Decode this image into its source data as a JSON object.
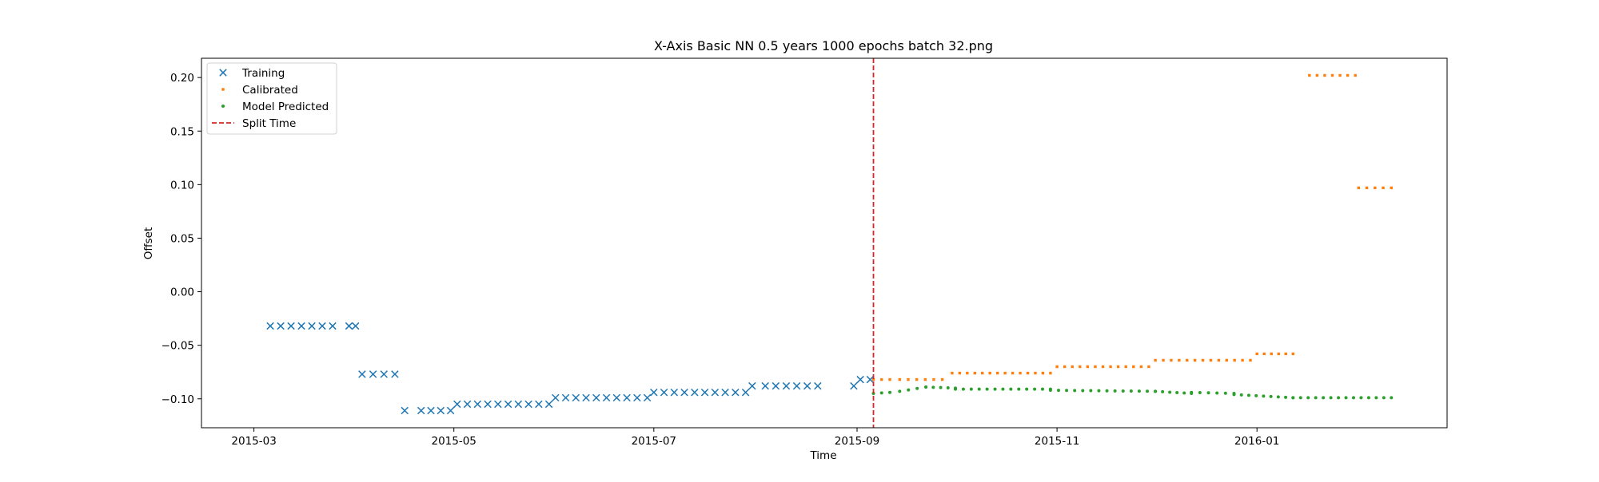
{
  "chart_data": {
    "type": "scatter",
    "title": "X-Axis Basic NN 0.5 years 1000 epochs batch 32.png",
    "xlabel": "Time",
    "ylabel": "Offset",
    "xlim": [
      "2015-02-13",
      "2016-02-28"
    ],
    "ylim": [
      -0.127,
      0.218
    ],
    "grid": false,
    "legend_position": "top-left",
    "x_ticks": [
      "2015-03",
      "2015-05",
      "2015-07",
      "2015-09",
      "2015-11",
      "2016-01"
    ],
    "y_ticks": [
      "0.20",
      "0.15",
      "0.10",
      "0.05",
      "0.00",
      "−0.05",
      "−0.10"
    ],
    "y_tick_values": [
      0.2,
      0.15,
      0.1,
      0.05,
      0.0,
      -0.05,
      -0.1
    ],
    "split_time": "2015-09-06",
    "series": [
      {
        "name": "Training",
        "marker": "x",
        "color": "#1f77b4",
        "segments": [
          {
            "start": "2015-03-06",
            "end": "2015-03-25",
            "value": -0.032
          },
          {
            "start": "2015-03-30",
            "end": "2015-04-01",
            "value": -0.032
          },
          {
            "start": "2015-04-03",
            "end": "2015-04-13",
            "value": -0.077
          },
          {
            "start": "2015-04-16",
            "end": "2015-04-16",
            "value": -0.111
          },
          {
            "start": "2015-04-21",
            "end": "2015-04-30",
            "value": -0.111
          },
          {
            "start": "2015-05-02",
            "end": "2015-05-30",
            "value": -0.105
          },
          {
            "start": "2015-06-01",
            "end": "2015-06-29",
            "value": -0.099
          },
          {
            "start": "2015-07-01",
            "end": "2015-07-29",
            "value": -0.094
          },
          {
            "start": "2015-07-31",
            "end": "2015-07-31",
            "value": -0.088
          },
          {
            "start": "2015-08-04",
            "end": "2015-08-20",
            "value": -0.088
          },
          {
            "start": "2015-08-31",
            "end": "2015-08-31",
            "value": -0.088
          },
          {
            "start": "2015-09-02",
            "end": "2015-09-05",
            "value": -0.082
          }
        ]
      },
      {
        "name": "Calibrated",
        "marker": "s",
        "color": "#ff7f0e",
        "segments": [
          {
            "start": "2015-09-06",
            "end": "2015-09-11",
            "value": -0.082
          },
          {
            "start": "2015-09-14",
            "end": "2015-09-27",
            "value": -0.082
          },
          {
            "start": "2015-09-30",
            "end": "2015-10-30",
            "value": -0.076
          },
          {
            "start": "2015-11-01",
            "end": "2015-11-29",
            "value": -0.07
          },
          {
            "start": "2015-12-01",
            "end": "2015-12-30",
            "value": -0.064
          },
          {
            "start": "2016-01-01",
            "end": "2016-01-12",
            "value": -0.058
          },
          {
            "start": "2016-01-17",
            "end": "2016-01-31",
            "value": 0.202
          },
          {
            "start": "2016-02-01",
            "end": "2016-02-11",
            "value": 0.097
          }
        ]
      },
      {
        "name": "Model Predicted",
        "marker": "o",
        "color": "#2ca02c",
        "segments": [
          {
            "start": "2015-09-06",
            "end": "2015-09-11",
            "value": -0.095,
            "value_end": -0.094
          },
          {
            "start": "2015-09-14",
            "end": "2015-09-22",
            "value": -0.093,
            "value_end": -0.089
          },
          {
            "start": "2015-09-22",
            "end": "2015-10-01",
            "value": -0.089,
            "value_end": -0.09
          },
          {
            "start": "2015-10-01",
            "end": "2015-10-30",
            "value": -0.091,
            "value_end": -0.091
          },
          {
            "start": "2015-10-30",
            "end": "2015-12-01",
            "value": -0.092,
            "value_end": -0.093
          },
          {
            "start": "2015-12-01",
            "end": "2015-12-12",
            "value": -0.093,
            "value_end": -0.095
          },
          {
            "start": "2015-12-12",
            "end": "2015-12-25",
            "value": -0.094,
            "value_end": -0.095
          },
          {
            "start": "2015-12-25",
            "end": "2016-01-12",
            "value": -0.096,
            "value_end": -0.099
          },
          {
            "start": "2016-01-12",
            "end": "2016-02-11",
            "value": -0.099,
            "value_end": -0.099
          }
        ]
      },
      {
        "name": "Split Time",
        "marker": "dashed-line",
        "color": "#d62728"
      }
    ]
  }
}
